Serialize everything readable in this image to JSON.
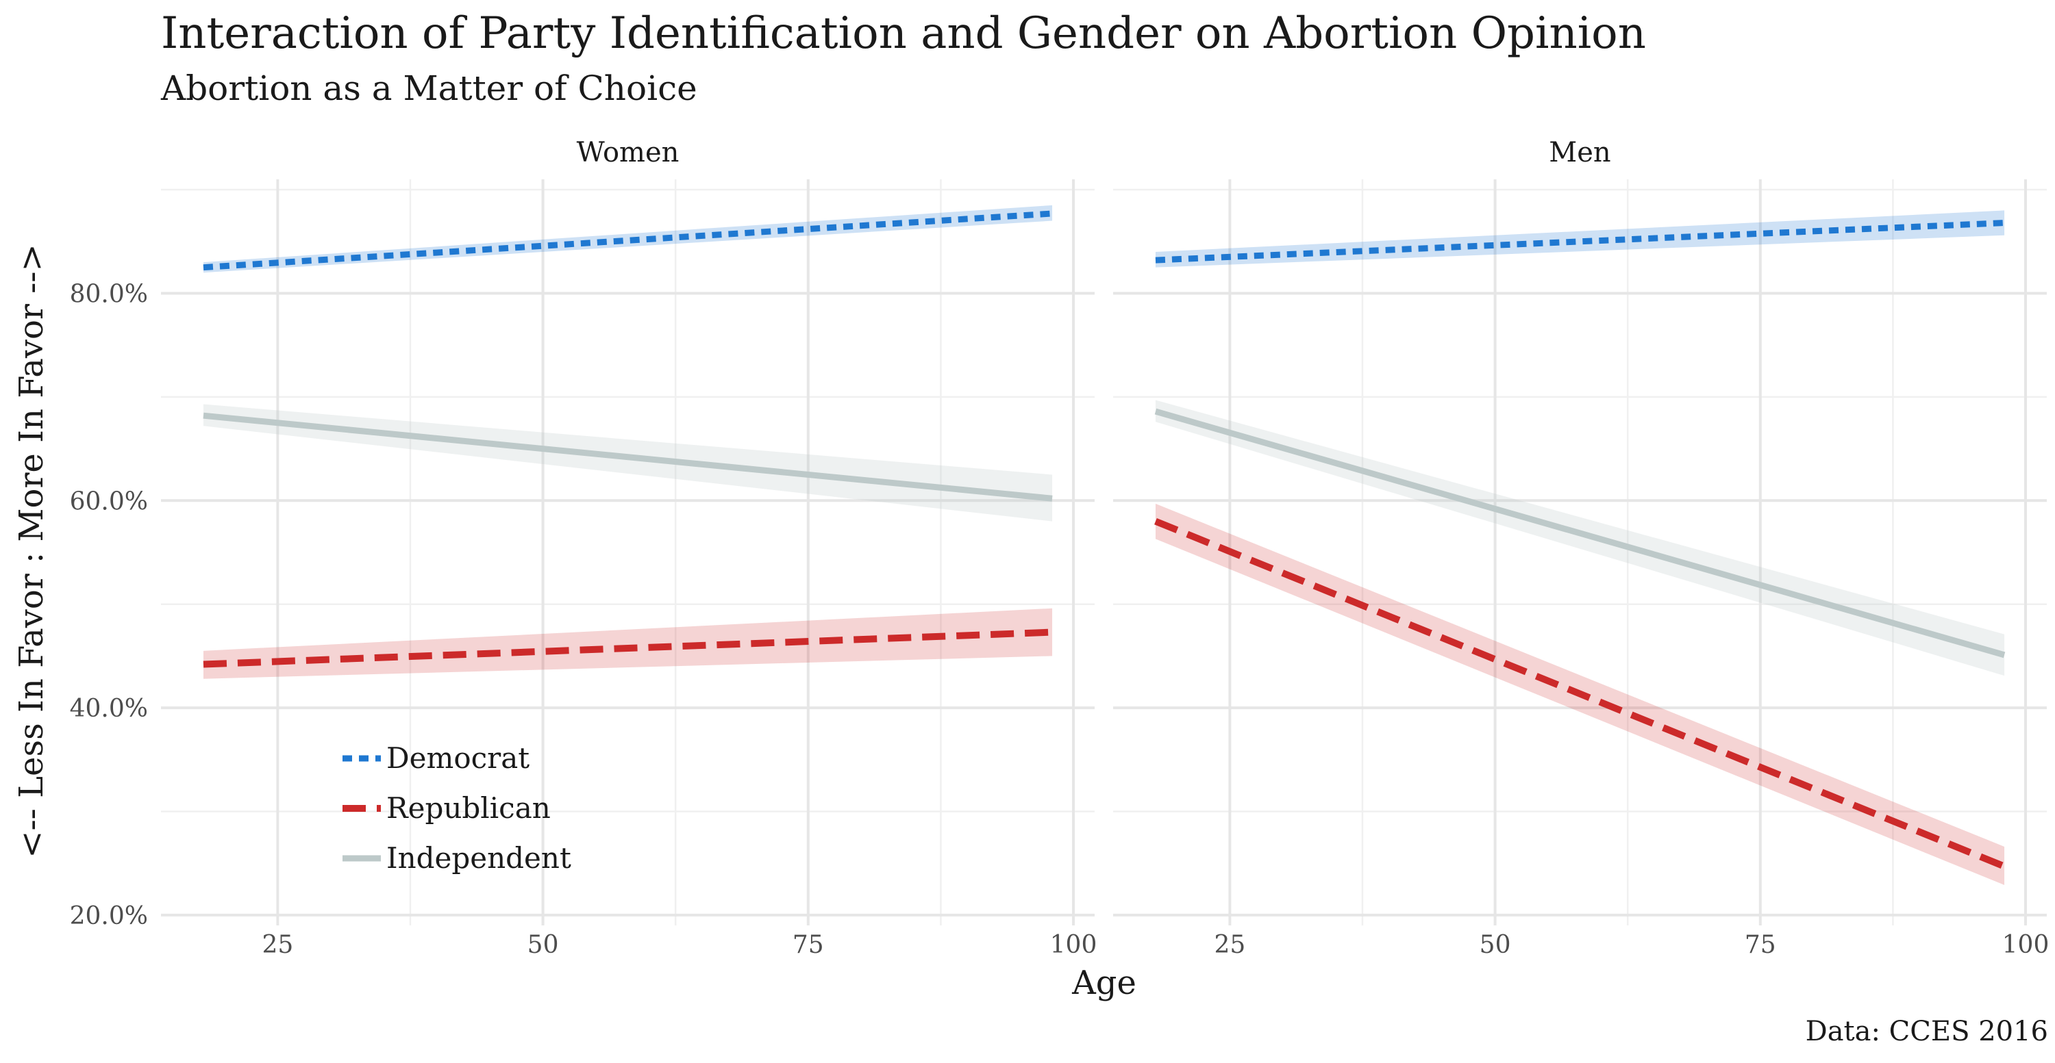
{
  "chart_data": {
    "type": "line",
    "title": "Interaction of Party Identification and Gender on Abortion Opinion",
    "subtitle": "Abortion as a Matter of Choice",
    "xlabel": "Age",
    "ylabel": "<-- Less In Favor : More In Favor -->",
    "caption": "Data: CCES 2016",
    "xlim": [
      18,
      98
    ],
    "ylim": [
      20,
      90
    ],
    "x_ticks": [
      25,
      50,
      75,
      100
    ],
    "y_ticks": [
      20,
      40,
      60,
      80
    ],
    "y_tick_labels": [
      "20.0%",
      "40.0%",
      "60.0%",
      "80.0%"
    ],
    "grid": true,
    "legend_position": "bottom-left of first panel",
    "legend": [
      {
        "name": "Democrat",
        "color": "#1f78d1",
        "linetype": "dotted"
      },
      {
        "name": "Republican",
        "color": "#cc2a2a",
        "linetype": "dashed"
      },
      {
        "name": "Independent",
        "color": "#bdc9c9",
        "linetype": "solid"
      }
    ],
    "panels": [
      {
        "name": "Women",
        "series": [
          {
            "name": "Democrat",
            "x": [
              18,
              98
            ],
            "y": [
              82.5,
              87.7
            ],
            "ci_lower": [
              82.0,
              87.0
            ],
            "ci_upper": [
              83.0,
              88.5
            ]
          },
          {
            "name": "Republican",
            "x": [
              18,
              98
            ],
            "y": [
              44.2,
              47.3
            ],
            "ci_lower": [
              42.8,
              45.0
            ],
            "ci_upper": [
              45.5,
              49.6
            ]
          },
          {
            "name": "Independent",
            "x": [
              18,
              98
            ],
            "y": [
              68.2,
              60.2
            ],
            "ci_lower": [
              67.2,
              58.0
            ],
            "ci_upper": [
              69.3,
              62.5
            ]
          }
        ]
      },
      {
        "name": "Men",
        "series": [
          {
            "name": "Democrat",
            "x": [
              18,
              98
            ],
            "y": [
              83.2,
              86.8
            ],
            "ci_lower": [
              82.5,
              85.6
            ],
            "ci_upper": [
              84.0,
              88.0
            ]
          },
          {
            "name": "Republican",
            "x": [
              18,
              98
            ],
            "y": [
              58.0,
              24.7
            ],
            "ci_lower": [
              56.3,
              22.9
            ],
            "ci_upper": [
              59.7,
              26.6
            ]
          },
          {
            "name": "Independent",
            "x": [
              18,
              98
            ],
            "y": [
              68.6,
              45.1
            ],
            "ci_lower": [
              67.6,
              43.1
            ],
            "ci_upper": [
              69.7,
              47.1
            ]
          }
        ]
      }
    ]
  }
}
